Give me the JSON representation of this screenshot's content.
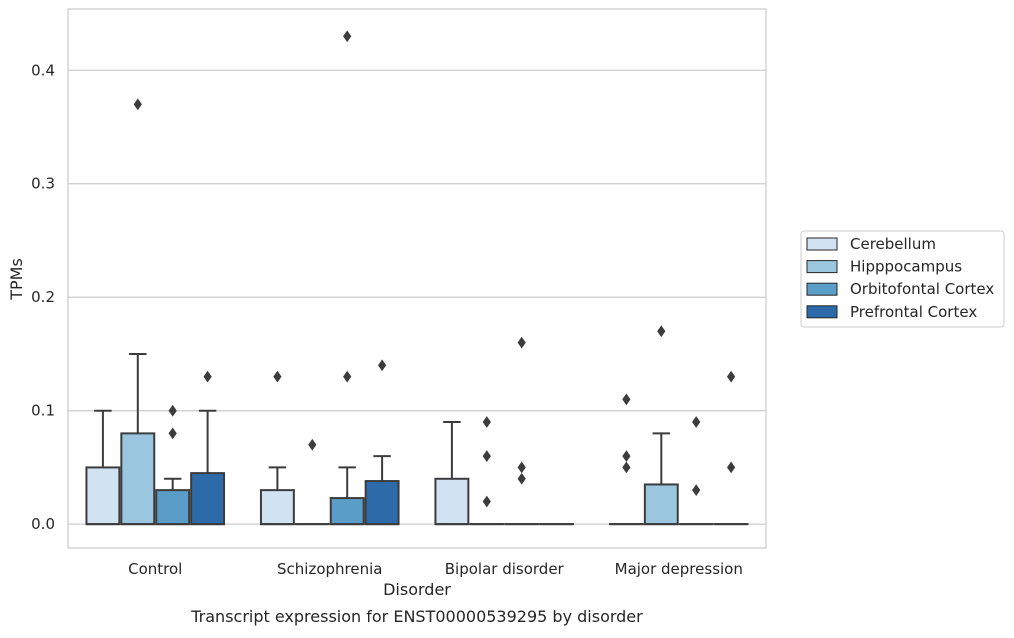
{
  "chart_data": {
    "type": "box",
    "caption": "Transcript expression for ENST00000539295 by disorder",
    "xlabel": "Disorder",
    "ylabel": "TPMs",
    "ylim": [
      -0.021,
      0.454
    ],
    "yticks": [
      0.0,
      0.1,
      0.2,
      0.3,
      0.4
    ],
    "ytick_labels": [
      "0.0",
      "0.1",
      "0.2",
      "0.3",
      "0.4"
    ],
    "grid": true,
    "legend_position": "right",
    "categories": [
      "Control",
      "Schizophrenia",
      "Bipolar disorder",
      "Major depression"
    ],
    "series": [
      {
        "name": "Cerebellum",
        "color": "#d1e2f2",
        "boxes": [
          {
            "q1": 0.0,
            "median": 0.0,
            "q3": 0.05,
            "whisker_low": 0.0,
            "whisker_high": 0.1,
            "outliers": []
          },
          {
            "q1": 0.0,
            "median": 0.0,
            "q3": 0.03,
            "whisker_low": 0.0,
            "whisker_high": 0.05,
            "outliers": [
              0.13
            ]
          },
          {
            "q1": 0.0,
            "median": 0.0,
            "q3": 0.04,
            "whisker_low": 0.0,
            "whisker_high": 0.09,
            "outliers": []
          },
          {
            "q1": 0.0,
            "median": 0.0,
            "q3": 0.0,
            "whisker_low": 0.0,
            "whisker_high": 0.0,
            "outliers": [
              0.05,
              0.06,
              0.11
            ]
          }
        ]
      },
      {
        "name": "Hipppocampus",
        "color": "#9ac6e0",
        "boxes": [
          {
            "q1": 0.0,
            "median": 0.0,
            "q3": 0.08,
            "whisker_low": 0.0,
            "whisker_high": 0.15,
            "outliers": [
              0.37
            ]
          },
          {
            "q1": 0.0,
            "median": 0.0,
            "q3": 0.0,
            "whisker_low": 0.0,
            "whisker_high": 0.0,
            "outliers": [
              0.07
            ]
          },
          {
            "q1": 0.0,
            "median": 0.0,
            "q3": 0.0,
            "whisker_low": 0.0,
            "whisker_high": 0.0,
            "outliers": [
              0.02,
              0.06,
              0.09
            ]
          },
          {
            "q1": 0.0,
            "median": 0.0,
            "q3": 0.035,
            "whisker_low": 0.0,
            "whisker_high": 0.08,
            "outliers": [
              0.17
            ]
          }
        ]
      },
      {
        "name": "Orbitofontal Cortex",
        "color": "#5a9dc9",
        "boxes": [
          {
            "q1": 0.0,
            "median": 0.0,
            "q3": 0.03,
            "whisker_low": 0.0,
            "whisker_high": 0.04,
            "outliers": [
              0.08,
              0.1
            ]
          },
          {
            "q1": 0.0,
            "median": 0.0,
            "q3": 0.023,
            "whisker_low": 0.0,
            "whisker_high": 0.05,
            "outliers": [
              0.13,
              0.43
            ]
          },
          {
            "q1": 0.0,
            "median": 0.0,
            "q3": 0.0,
            "whisker_low": 0.0,
            "whisker_high": 0.0,
            "outliers": [
              0.04,
              0.05,
              0.16
            ]
          },
          {
            "q1": 0.0,
            "median": 0.0,
            "q3": 0.0,
            "whisker_low": 0.0,
            "whisker_high": 0.0,
            "outliers": [
              0.03,
              0.09
            ]
          }
        ]
      },
      {
        "name": "Prefrontal Cortex",
        "color": "#2d6aaa",
        "boxes": [
          {
            "q1": 0.0,
            "median": 0.0,
            "q3": 0.045,
            "whisker_low": 0.0,
            "whisker_high": 0.1,
            "outliers": [
              0.13
            ]
          },
          {
            "q1": 0.0,
            "median": 0.0,
            "q3": 0.038,
            "whisker_low": 0.0,
            "whisker_high": 0.06,
            "outliers": [
              0.14
            ]
          },
          {
            "q1": 0.0,
            "median": 0.0,
            "q3": 0.0,
            "whisker_low": 0.0,
            "whisker_high": 0.0,
            "outliers": []
          },
          {
            "q1": 0.0,
            "median": 0.0,
            "q3": 0.0,
            "whisker_low": 0.0,
            "whisker_high": 0.0,
            "outliers": [
              0.05,
              0.13
            ]
          }
        ]
      }
    ]
  }
}
